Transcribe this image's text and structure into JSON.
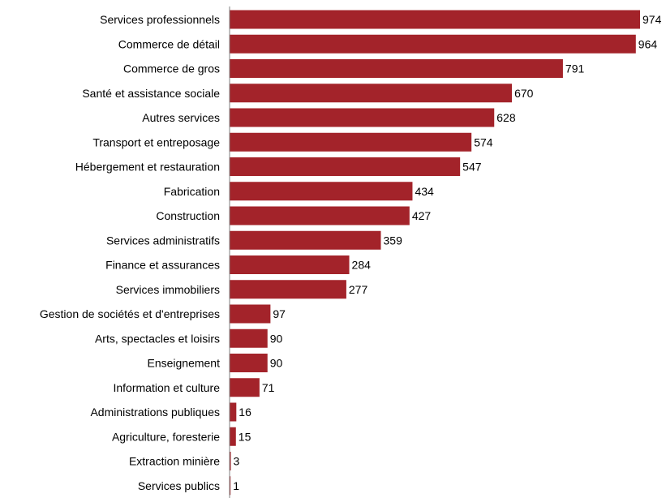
{
  "chart_data": {
    "type": "bar",
    "orientation": "horizontal",
    "title": "",
    "xlabel": "",
    "ylabel": "",
    "grid": false,
    "legend": "none",
    "bar_color": "#A3232A",
    "axis_color": "#808080",
    "xlim": [
      0,
      974
    ],
    "categories": [
      "Services professionnels",
      "Commerce de détail",
      "Commerce de gros",
      "Santé et assistance sociale",
      "Autres services",
      "Transport et entreposage",
      "Hébergement et restauration",
      "Fabrication",
      "Construction",
      "Services administratifs",
      "Finance et assurances",
      "Services immobiliers",
      "Gestion de sociétés et d'entreprises",
      "Arts, spectacles et loisirs",
      "Enseignement",
      "Information et culture",
      "Administrations publiques",
      "Agriculture, foresterie",
      "Extraction minière",
      "Services publics"
    ],
    "values": [
      974,
      964,
      791,
      670,
      628,
      574,
      547,
      434,
      427,
      359,
      284,
      277,
      97,
      90,
      90,
      71,
      16,
      15,
      3,
      1
    ],
    "data_labels": [
      "974",
      "964",
      "791",
      "670",
      "628",
      "574",
      "547",
      "434",
      "427",
      "359",
      "284",
      "277",
      "97",
      "90",
      "90",
      "71",
      "16",
      "15",
      "3",
      "1"
    ]
  }
}
